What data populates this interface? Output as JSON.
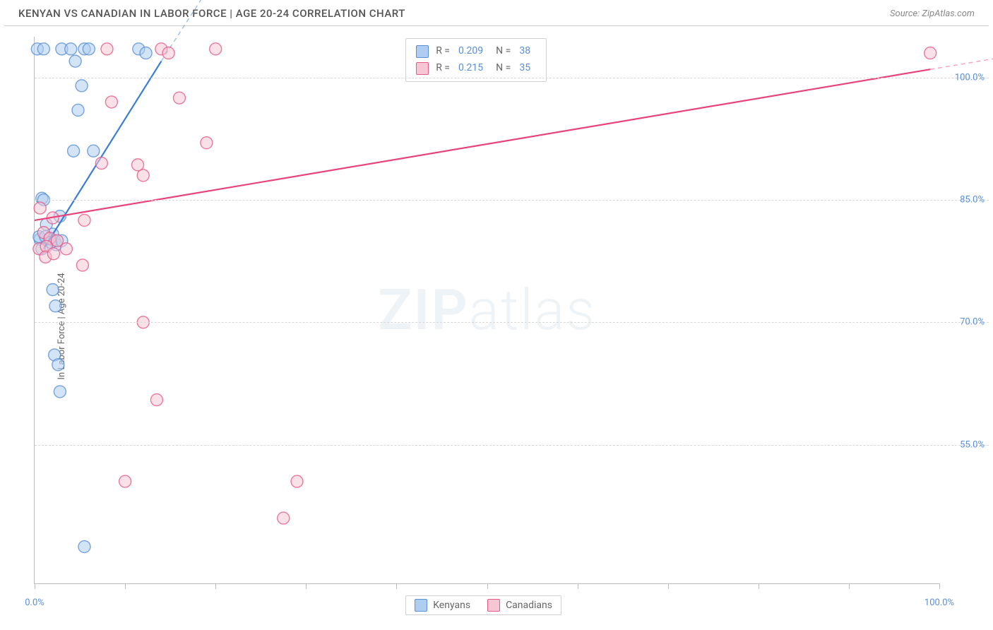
{
  "title": "KENYAN VS CANADIAN IN LABOR FORCE | AGE 20-24 CORRELATION CHART",
  "source": "Source: ZipAtlas.com",
  "ylabel": "In Labor Force | Age 20-24",
  "watermark_zip": "ZIP",
  "watermark_atlas": "atlas",
  "chart": {
    "type": "scatter",
    "xlim": [
      0,
      100
    ],
    "ylim": [
      38,
      105
    ],
    "y_gridlines": [
      55.0,
      70.0,
      85.0,
      100.0
    ],
    "y_tick_labels": [
      "55.0%",
      "70.0%",
      "85.0%",
      "100.0%"
    ],
    "x_ticks": [
      0,
      10,
      20,
      30,
      40,
      50,
      60,
      70,
      80,
      90,
      100
    ],
    "x_tick_labels": {
      "0": "0.0%",
      "100": "100.0%"
    },
    "grid_color": "#d8d8d8",
    "axis_color": "#bbbbbb",
    "background_color": "#ffffff",
    "tick_label_color": "#5a8fd6",
    "tick_label_fontsize": 13,
    "marker_radius": 8.5,
    "marker_opacity": 0.55,
    "marker_stroke_width": 1.4,
    "line_stroke_width": 2.2,
    "dashed_stroke_width": 1.4,
    "series": {
      "kenyans": {
        "label": "Kenyans",
        "fill": "#aecdf0",
        "stroke": "#5a8fd6",
        "line_color": "#3b7dd8",
        "R": "0.209",
        "N": "38",
        "points": [
          [
            0.3,
            103.5
          ],
          [
            1.0,
            103.5
          ],
          [
            3.0,
            103.5
          ],
          [
            4.0,
            103.5
          ],
          [
            5.5,
            103.5
          ],
          [
            6.0,
            103.5
          ],
          [
            11.5,
            103.5
          ],
          [
            12.3,
            103.0
          ],
          [
            4.5,
            102.0
          ],
          [
            5.2,
            99.0
          ],
          [
            4.8,
            96.0
          ],
          [
            4.3,
            91.0
          ],
          [
            6.5,
            91.0
          ],
          [
            0.8,
            85.2
          ],
          [
            1.0,
            85.0
          ],
          [
            2.8,
            83.0
          ],
          [
            1.3,
            82.0
          ],
          [
            2.0,
            80.8
          ],
          [
            0.6,
            80.2
          ],
          [
            1.6,
            80.2
          ],
          [
            2.2,
            80.0
          ],
          [
            0.5,
            80.5
          ],
          [
            1.2,
            80.5
          ],
          [
            2.4,
            79.5
          ],
          [
            3.0,
            80.0
          ],
          [
            0.8,
            79.0
          ],
          [
            1.8,
            79.8
          ],
          [
            2.0,
            74.0
          ],
          [
            2.3,
            72.0
          ],
          [
            2.2,
            66.0
          ],
          [
            2.6,
            64.8
          ],
          [
            2.8,
            61.5
          ],
          [
            5.5,
            42.5
          ]
        ],
        "trend_solid": [
          [
            1.0,
            79.0
          ],
          [
            14.0,
            102.0
          ]
        ],
        "trend_dash": [
          [
            14.0,
            102.0
          ],
          [
            21.0,
            114.0
          ]
        ]
      },
      "canadians": {
        "label": "Canadians",
        "fill": "#f6c6d3",
        "stroke": "#e55a8a",
        "line_color": "#e8447a",
        "R": "0.215",
        "N": "35",
        "points": [
          [
            8.0,
            103.5
          ],
          [
            14.0,
            103.5
          ],
          [
            14.8,
            103.0
          ],
          [
            20.0,
            103.5
          ],
          [
            99.0,
            103.0
          ],
          [
            8.5,
            97.0
          ],
          [
            16.0,
            97.5
          ],
          [
            19.0,
            92.0
          ],
          [
            7.4,
            89.5
          ],
          [
            11.4,
            89.3
          ],
          [
            12.0,
            88.0
          ],
          [
            0.6,
            84.0
          ],
          [
            2.0,
            82.8
          ],
          [
            5.5,
            82.5
          ],
          [
            1.0,
            81.0
          ],
          [
            1.7,
            80.3
          ],
          [
            2.5,
            80.0
          ],
          [
            0.5,
            79.0
          ],
          [
            1.3,
            79.3
          ],
          [
            3.5,
            79.0
          ],
          [
            1.2,
            78.0
          ],
          [
            2.1,
            78.4
          ],
          [
            5.3,
            77.0
          ],
          [
            12.0,
            70.0
          ],
          [
            13.5,
            60.5
          ],
          [
            10.0,
            50.5
          ],
          [
            29.0,
            50.5
          ],
          [
            27.5,
            46.0
          ]
        ],
        "trend_solid": [
          [
            0.0,
            82.5
          ],
          [
            99.0,
            101.0
          ]
        ],
        "trend_dash": [
          [
            99.0,
            101.0
          ],
          [
            106.0,
            102.3
          ]
        ]
      }
    }
  },
  "legend_top_rows": [
    {
      "swatch_fill": "#aecdf0",
      "swatch_stroke": "#5a8fd6",
      "R": "0.209",
      "N": "38"
    },
    {
      "swatch_fill": "#f6c6d3",
      "swatch_stroke": "#e55a8a",
      "R": "0.215",
      "N": "35"
    }
  ],
  "legend_bottom_items": [
    {
      "swatch_fill": "#aecdf0",
      "swatch_stroke": "#5a8fd6",
      "label": "Kenyans"
    },
    {
      "swatch_fill": "#f6c6d3",
      "swatch_stroke": "#e55a8a",
      "label": "Canadians"
    }
  ]
}
